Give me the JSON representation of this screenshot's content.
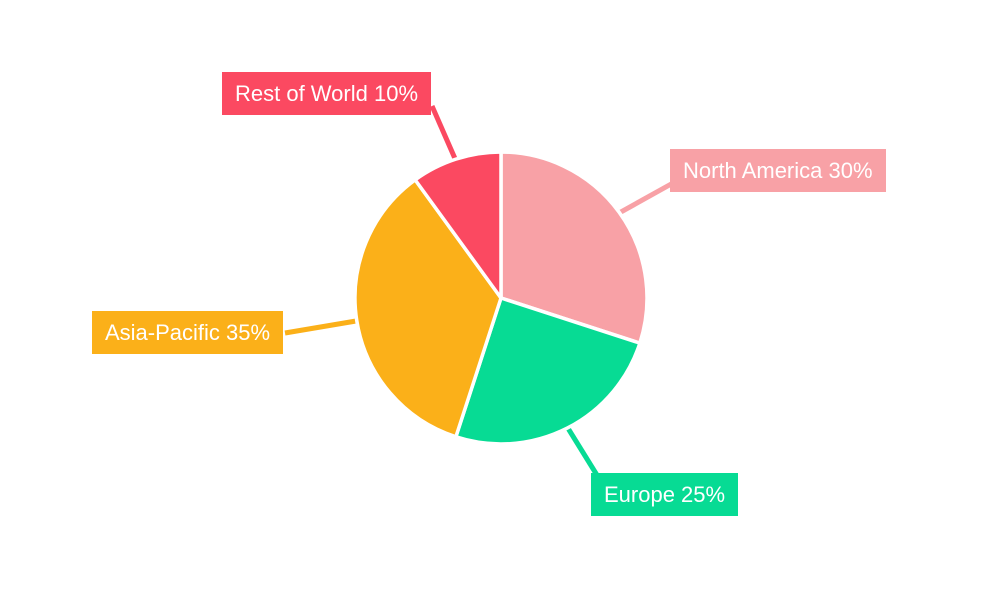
{
  "chart_data": {
    "type": "pie",
    "direction": "clockwise",
    "start_angle": "top",
    "background_color": "#FFFFFF",
    "slice_gap_color": "#FFFFFF",
    "label_text_color": "#FFFFFF",
    "label_style": "callout-boxes-with-leader-lines",
    "slices": [
      {
        "label": "North America",
        "value": 30,
        "unit": "%",
        "display": "North America 30%",
        "color": "#F8A1A6"
      },
      {
        "label": "Europe",
        "value": 25,
        "unit": "%",
        "display": "Europe 25%",
        "color": "#07DB94"
      },
      {
        "label": "Asia-Pacific",
        "value": 35,
        "unit": "%",
        "display": "Asia-Pacific 35%",
        "color": "#FBB019"
      },
      {
        "label": "Rest of World",
        "value": 10,
        "unit": "%",
        "display": "Rest of World 10%",
        "color": "#FB4961"
      }
    ]
  }
}
